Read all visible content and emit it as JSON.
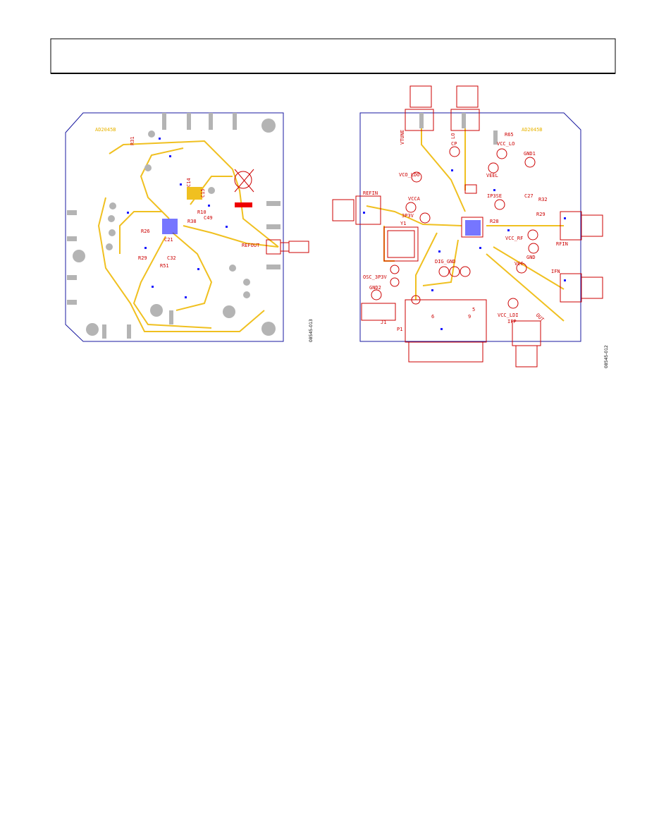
{
  "left_board": {
    "labels": [
      "AD2045B",
      "R31",
      "C14",
      "C15",
      "R10",
      "R38",
      "C49",
      "R26",
      "C21",
      "C32",
      "R51",
      "REFOUT",
      "R29"
    ],
    "figure_id": "08545-013"
  },
  "right_board": {
    "labels": [
      "AD2045B",
      "VTUNE",
      "LO",
      "CP",
      "R65",
      "VCC_LO",
      "GND1",
      "VCO_LDO",
      "VEEL",
      "VCCA",
      "REFIN",
      "3P3V",
      "Y1",
      "IP3SE",
      "C27",
      "R32",
      "R29",
      "R28",
      "VCC_RF",
      "RFIN",
      "GND",
      "VCC",
      "IFN",
      "DIG_GND",
      "OSC_3P3V",
      "GND2",
      "VCC_LDI",
      "IFP",
      "OUT",
      "J1",
      "P1",
      "5",
      "9",
      "6"
    ],
    "figure_id": "08545-012"
  }
}
